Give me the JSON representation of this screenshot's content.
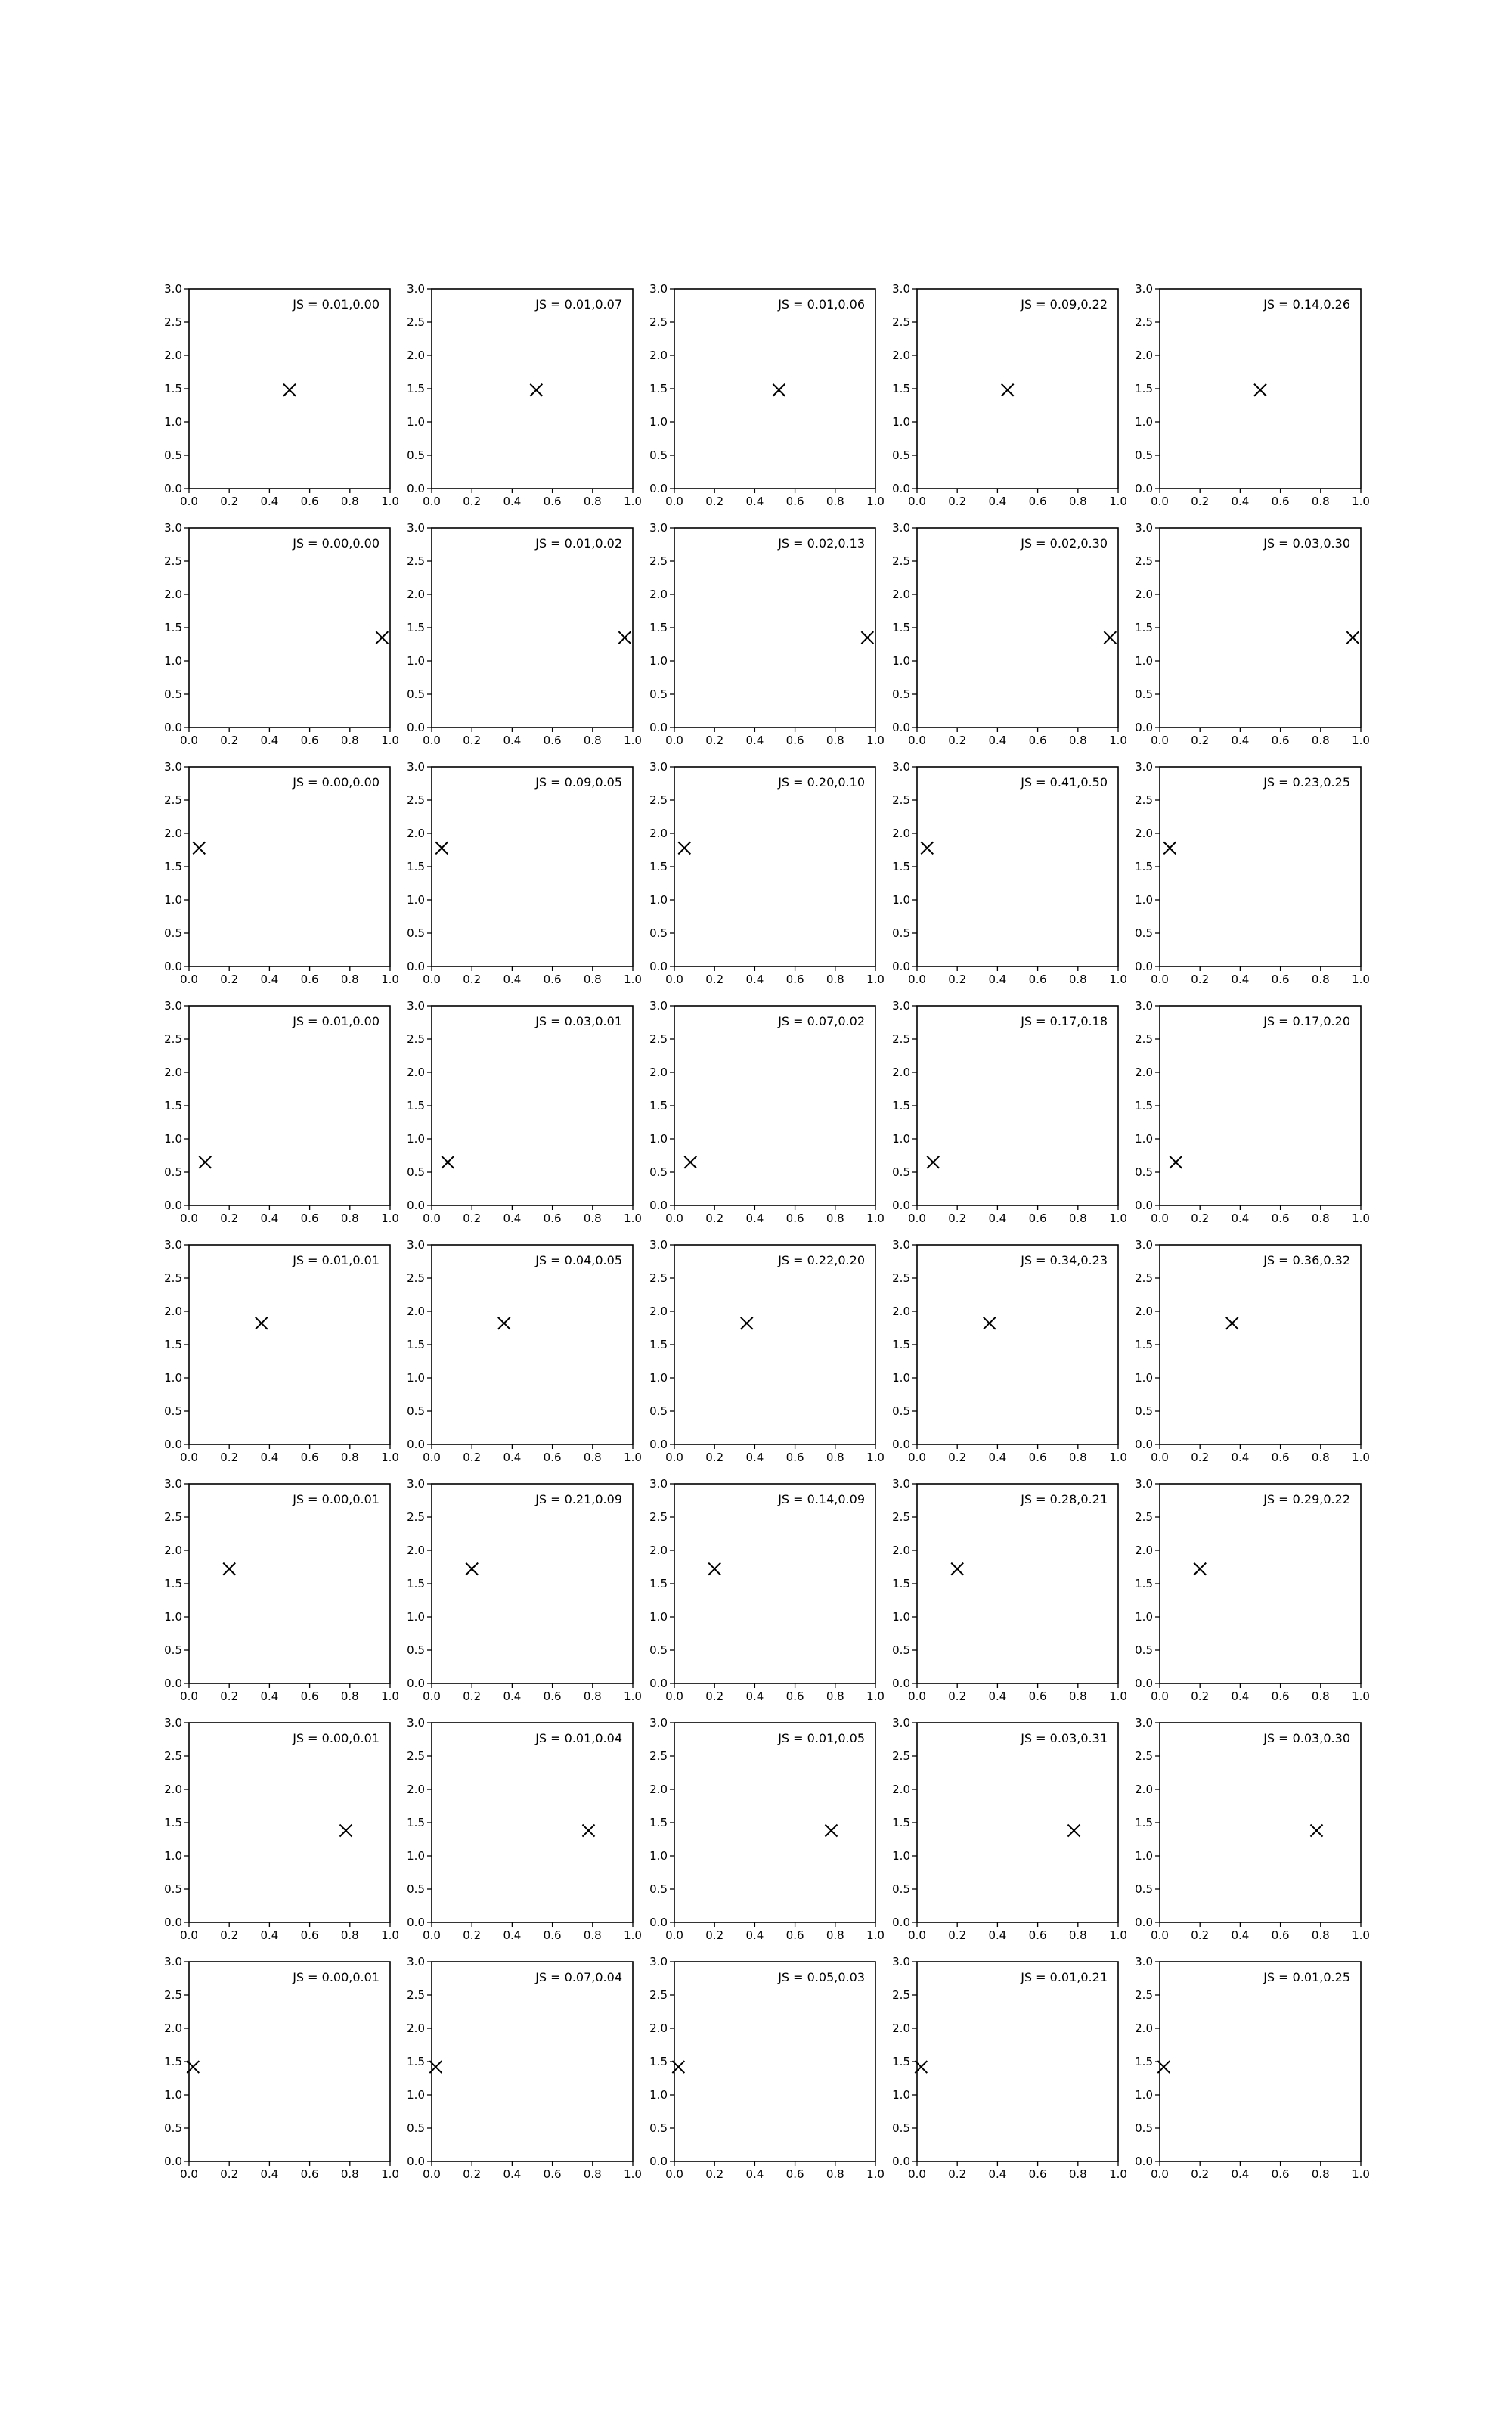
{
  "colors": {
    "background": "#ffffff",
    "series_red": "#ff0000",
    "series_green": "#008000",
    "series_blue": "#0000ff",
    "series_black": "#000000",
    "marker": "#000000"
  },
  "chart_data": {
    "type": "scatter",
    "grid": false,
    "layout_rows": 8,
    "layout_cols": 5,
    "xlim": [
      0.0,
      1.0
    ],
    "ylim": [
      0.0,
      3.0
    ],
    "x_ticks": [
      "0.0",
      "0.2",
      "0.4",
      "0.6",
      "0.8",
      "1.0"
    ],
    "y_ticks": [
      "0.0",
      "0.5",
      "1.0",
      "1.5",
      "2.0",
      "2.5",
      "3.0"
    ],
    "panels": [
      {
        "row": 0,
        "col": 0,
        "label": "JS = 0.01,0.00",
        "marker": [
          0.5,
          1.48
        ],
        "series": [
          "red",
          "green",
          "blue"
        ]
      },
      {
        "row": 0,
        "col": 1,
        "label": "JS = 0.01,0.07",
        "marker": [
          0.52,
          1.48
        ],
        "series": [
          "red",
          "green",
          "blue"
        ]
      },
      {
        "row": 0,
        "col": 2,
        "label": "JS = 0.01,0.06",
        "marker": [
          0.52,
          1.48
        ],
        "series": [
          "red",
          "green",
          "blue"
        ]
      },
      {
        "row": 0,
        "col": 3,
        "label": "JS = 0.09,0.22",
        "marker": [
          0.45,
          1.48
        ],
        "series": [
          "red",
          "green",
          "blue"
        ]
      },
      {
        "row": 0,
        "col": 4,
        "label": "JS = 0.14,0.26",
        "marker": [
          0.5,
          1.48
        ],
        "series": [
          "red",
          "black"
        ]
      },
      {
        "row": 1,
        "col": 0,
        "label": "JS = 0.00,0.00",
        "marker": [
          0.96,
          1.35
        ],
        "series": [
          "red",
          "green",
          "blue"
        ]
      },
      {
        "row": 1,
        "col": 1,
        "label": "JS = 0.01,0.02",
        "marker": [
          0.96,
          1.35
        ],
        "series": [
          "red",
          "green",
          "blue"
        ]
      },
      {
        "row": 1,
        "col": 2,
        "label": "JS = 0.02,0.13",
        "marker": [
          0.96,
          1.35
        ],
        "series": [
          "red",
          "green",
          "blue"
        ]
      },
      {
        "row": 1,
        "col": 3,
        "label": "JS = 0.02,0.30",
        "marker": [
          0.96,
          1.35
        ],
        "series": [
          "red",
          "green",
          "blue"
        ]
      },
      {
        "row": 1,
        "col": 4,
        "label": "JS = 0.03,0.30",
        "marker": [
          0.96,
          1.35
        ],
        "series": [
          "red",
          "black"
        ]
      },
      {
        "row": 2,
        "col": 0,
        "label": "JS = 0.00,0.00",
        "marker": [
          0.05,
          1.78
        ],
        "series": [
          "red",
          "green",
          "blue"
        ]
      },
      {
        "row": 2,
        "col": 1,
        "label": "JS = 0.09,0.05",
        "marker": [
          0.05,
          1.78
        ],
        "series": [
          "red",
          "green",
          "blue"
        ]
      },
      {
        "row": 2,
        "col": 2,
        "label": "JS = 0.20,0.10",
        "marker": [
          0.05,
          1.78
        ],
        "series": [
          "red",
          "green",
          "blue"
        ]
      },
      {
        "row": 2,
        "col": 3,
        "label": "JS = 0.41,0.50",
        "marker": [
          0.05,
          1.78
        ],
        "series": [
          "red",
          "green",
          "blue"
        ]
      },
      {
        "row": 2,
        "col": 4,
        "label": "JS = 0.23,0.25",
        "marker": [
          0.05,
          1.78
        ],
        "series": [
          "red",
          "black"
        ]
      },
      {
        "row": 3,
        "col": 0,
        "label": "JS = 0.01,0.00",
        "marker": [
          0.08,
          0.65
        ],
        "series": [
          "red",
          "green",
          "blue"
        ]
      },
      {
        "row": 3,
        "col": 1,
        "label": "JS = 0.03,0.01",
        "marker": [
          0.08,
          0.65
        ],
        "series": [
          "red",
          "green",
          "blue"
        ]
      },
      {
        "row": 3,
        "col": 2,
        "label": "JS = 0.07,0.02",
        "marker": [
          0.08,
          0.65
        ],
        "series": [
          "red",
          "green",
          "blue"
        ]
      },
      {
        "row": 3,
        "col": 3,
        "label": "JS = 0.17,0.18",
        "marker": [
          0.08,
          0.65
        ],
        "series": [
          "red",
          "green",
          "blue"
        ]
      },
      {
        "row": 3,
        "col": 4,
        "label": "JS = 0.17,0.20",
        "marker": [
          0.08,
          0.65
        ],
        "series": [
          "red",
          "black"
        ]
      },
      {
        "row": 4,
        "col": 0,
        "label": "JS = 0.01,0.01",
        "marker": [
          0.36,
          1.82
        ],
        "series": [
          "red",
          "green",
          "blue"
        ]
      },
      {
        "row": 4,
        "col": 1,
        "label": "JS = 0.04,0.05",
        "marker": [
          0.36,
          1.82
        ],
        "series": [
          "red",
          "green",
          "blue"
        ]
      },
      {
        "row": 4,
        "col": 2,
        "label": "JS = 0.22,0.20",
        "marker": [
          0.36,
          1.82
        ],
        "series": [
          "red",
          "green",
          "blue"
        ]
      },
      {
        "row": 4,
        "col": 3,
        "label": "JS = 0.34,0.23",
        "marker": [
          0.36,
          1.82
        ],
        "series": [
          "red",
          "green",
          "blue"
        ]
      },
      {
        "row": 4,
        "col": 4,
        "label": "JS = 0.36,0.32",
        "marker": [
          0.36,
          1.82
        ],
        "series": [
          "red",
          "black"
        ]
      },
      {
        "row": 5,
        "col": 0,
        "label": "JS = 0.00,0.01",
        "marker": [
          0.2,
          1.72
        ],
        "series": [
          "red",
          "green",
          "blue"
        ]
      },
      {
        "row": 5,
        "col": 1,
        "label": "JS = 0.21,0.09",
        "marker": [
          0.2,
          1.72
        ],
        "series": [
          "red",
          "green",
          "blue"
        ]
      },
      {
        "row": 5,
        "col": 2,
        "label": "JS = 0.14,0.09",
        "marker": [
          0.2,
          1.72
        ],
        "series": [
          "red",
          "green",
          "blue"
        ]
      },
      {
        "row": 5,
        "col": 3,
        "label": "JS = 0.28,0.21",
        "marker": [
          0.2,
          1.72
        ],
        "series": [
          "red",
          "green",
          "blue"
        ]
      },
      {
        "row": 5,
        "col": 4,
        "label": "JS = 0.29,0.22",
        "marker": [
          0.2,
          1.72
        ],
        "series": [
          "red",
          "black"
        ]
      },
      {
        "row": 6,
        "col": 0,
        "label": "JS = 0.00,0.01",
        "marker": [
          0.78,
          1.38
        ],
        "series": [
          "red",
          "green",
          "blue"
        ]
      },
      {
        "row": 6,
        "col": 1,
        "label": "JS = 0.01,0.04",
        "marker": [
          0.78,
          1.38
        ],
        "series": [
          "red",
          "green",
          "blue"
        ]
      },
      {
        "row": 6,
        "col": 2,
        "label": "JS = 0.01,0.05",
        "marker": [
          0.78,
          1.38
        ],
        "series": [
          "red",
          "green",
          "blue"
        ]
      },
      {
        "row": 6,
        "col": 3,
        "label": "JS = 0.03,0.31",
        "marker": [
          0.78,
          1.38
        ],
        "series": [
          "red",
          "green",
          "blue"
        ]
      },
      {
        "row": 6,
        "col": 4,
        "label": "JS = 0.03,0.30",
        "marker": [
          0.78,
          1.38
        ],
        "series": [
          "red",
          "black"
        ]
      },
      {
        "row": 7,
        "col": 0,
        "label": "JS = 0.00,0.01",
        "marker": [
          0.02,
          1.42
        ],
        "series": [
          "red",
          "green",
          "blue"
        ]
      },
      {
        "row": 7,
        "col": 1,
        "label": "JS = 0.07,0.04",
        "marker": [
          0.02,
          1.42
        ],
        "series": [
          "red",
          "green",
          "blue"
        ]
      },
      {
        "row": 7,
        "col": 2,
        "label": "JS = 0.05,0.03",
        "marker": [
          0.02,
          1.42
        ],
        "series": [
          "red",
          "green",
          "blue"
        ]
      },
      {
        "row": 7,
        "col": 3,
        "label": "JS = 0.01,0.21",
        "marker": [
          0.02,
          1.42
        ],
        "series": [
          "red",
          "green",
          "blue"
        ]
      },
      {
        "row": 7,
        "col": 4,
        "label": "JS = 0.01,0.25",
        "marker": [
          0.02,
          1.42
        ],
        "series": [
          "red",
          "black"
        ]
      }
    ]
  }
}
